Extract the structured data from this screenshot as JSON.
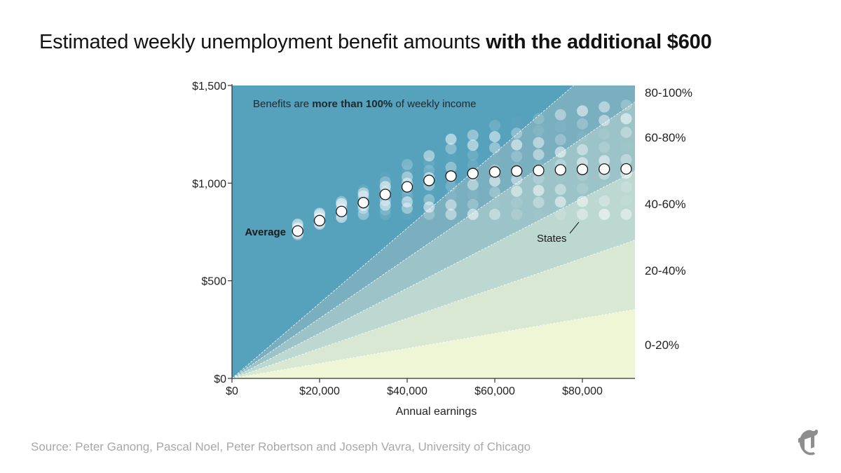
{
  "title": {
    "prefix": "Estimated weekly unemployment benefit amounts ",
    "bold": "with the additional $600"
  },
  "source": "Source: Peter Ganong, Pascal Noel, Peter Robertson and Joseph Vavra, University of Chicago",
  "chart_data": {
    "type": "scatter",
    "xlabel": "Annual earnings",
    "ylabel": "",
    "xlim": [
      0,
      92000
    ],
    "ylim": [
      0,
      1500
    ],
    "x_ticks": [
      0,
      20000,
      40000,
      60000,
      80000
    ],
    "x_tick_labels": [
      "$0",
      "$20,000",
      "$40,000",
      "$60,000",
      "$80,000"
    ],
    "y_ticks": [
      0,
      500,
      1000,
      1500
    ],
    "y_tick_labels": [
      "$0",
      "$500",
      "$1,000",
      "$1,500"
    ],
    "replacement_bands": [
      {
        "label": "80-100%",
        "min_ratio": 0.8,
        "max_ratio": 1.0,
        "color": "#7aafbf"
      },
      {
        "label": "60-80%",
        "min_ratio": 0.6,
        "max_ratio": 0.8,
        "color": "#9cc4c8"
      },
      {
        "label": "40-60%",
        "min_ratio": 0.4,
        "max_ratio": 0.6,
        "color": "#bcd8d1"
      },
      {
        "label": "20-40%",
        "min_ratio": 0.2,
        "max_ratio": 0.4,
        "color": "#d8e8d2"
      },
      {
        "label": "0-20%",
        "min_ratio": 0.0,
        "max_ratio": 0.2,
        "color": "#eef6d6"
      }
    ],
    "above_band": {
      "color": "#56a1bb",
      "label_prefix": "Benefits are ",
      "label_bold": "more than 100%",
      "label_suffix": " of weekly income"
    },
    "average_series": {
      "name": "Average",
      "x": [
        15000,
        20000,
        25000,
        30000,
        35000,
        40000,
        45000,
        50000,
        55000,
        60000,
        65000,
        70000,
        75000,
        80000,
        85000,
        90000
      ],
      "y": [
        755,
        808,
        855,
        900,
        942,
        981,
        1014,
        1036,
        1049,
        1057,
        1062,
        1065,
        1068,
        1070,
        1072,
        1073
      ]
    },
    "states_series": {
      "name": "States",
      "x": [
        15000,
        20000,
        25000,
        30000,
        35000,
        40000,
        45000,
        50000,
        55000,
        60000,
        65000,
        70000,
        75000,
        80000,
        85000,
        90000
      ],
      "y_min": [
        735,
        790,
        825,
        840,
        840,
        840,
        840,
        840,
        840,
        840,
        840,
        840,
        840,
        840,
        840,
        840
      ],
      "y_max": [
        790,
        845,
        905,
        965,
        1030,
        1095,
        1140,
        1225,
        1245,
        1295,
        1315,
        1330,
        1350,
        1370,
        1390,
        1400
      ]
    }
  }
}
